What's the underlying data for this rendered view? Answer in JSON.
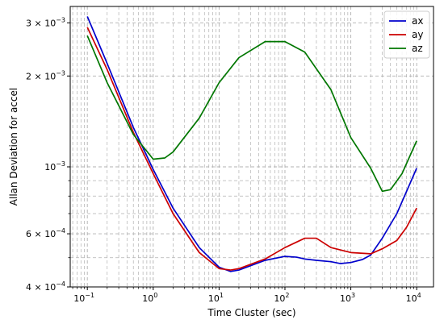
{
  "chart_data": {
    "type": "line",
    "title": "",
    "xlabel": "Time Cluster (sec)",
    "ylabel": "Allan Deviation for accel",
    "xscale": "log",
    "yscale": "log",
    "xlim": [
      0.055,
      18000
    ],
    "ylim": [
      0.0004,
      0.0034
    ],
    "grid": "both major and minor, dashed gray",
    "legend": "top-right",
    "x_ticks": [
      {
        "value": 0.1,
        "base": "10",
        "exp": "−1"
      },
      {
        "value": 1,
        "base": "10",
        "exp": "0"
      },
      {
        "value": 10,
        "base": "10",
        "exp": "1"
      },
      {
        "value": 100,
        "base": "10",
        "exp": "2"
      },
      {
        "value": 1000,
        "base": "10",
        "exp": "3"
      },
      {
        "value": 10000,
        "base": "10",
        "exp": "4"
      }
    ],
    "y_ticks": [
      {
        "value": 0.003,
        "mant": "3 × 10",
        "exp": "−3"
      },
      {
        "value": 0.002,
        "mant": "2 × 10",
        "exp": "−3"
      },
      {
        "value": 0.001,
        "mant": "10",
        "exp": "−3"
      },
      {
        "value": 0.0006,
        "mant": "6 × 10",
        "exp": "−4"
      },
      {
        "value": 0.0004,
        "mant": "4 × 10",
        "exp": "−4"
      }
    ],
    "series": [
      {
        "name": "ax",
        "color": "#0000cc",
        "points": [
          [
            0.1,
            0.00315
          ],
          [
            0.2,
            0.0022
          ],
          [
            0.5,
            0.00135
          ],
          [
            1,
            0.00098
          ],
          [
            2,
            0.00073
          ],
          [
            5,
            0.00054
          ],
          [
            10,
            0.000465
          ],
          [
            15,
            0.00045
          ],
          [
            20,
            0.000455
          ],
          [
            50,
            0.00049
          ],
          [
            100,
            0.000505
          ],
          [
            150,
            0.000502
          ],
          [
            200,
            0.000495
          ],
          [
            300,
            0.00049
          ],
          [
            500,
            0.000485
          ],
          [
            700,
            0.000478
          ],
          [
            1000,
            0.000482
          ],
          [
            1500,
            0.000493
          ],
          [
            2000,
            0.00051
          ],
          [
            3000,
            0.00058
          ],
          [
            5000,
            0.0007
          ],
          [
            10000,
            0.00099
          ]
        ]
      },
      {
        "name": "ay",
        "color": "#cc0000",
        "points": [
          [
            0.1,
            0.0029
          ],
          [
            0.2,
            0.0021
          ],
          [
            0.5,
            0.0013
          ],
          [
            1,
            0.00095
          ],
          [
            2,
            0.0007
          ],
          [
            5,
            0.00052
          ],
          [
            10,
            0.00046
          ],
          [
            15,
            0.000455
          ],
          [
            20,
            0.00046
          ],
          [
            50,
            0.000495
          ],
          [
            100,
            0.00054
          ],
          [
            200,
            0.00058
          ],
          [
            300,
            0.00058
          ],
          [
            500,
            0.00054
          ],
          [
            1000,
            0.00052
          ],
          [
            2000,
            0.000515
          ],
          [
            3000,
            0.000535
          ],
          [
            5000,
            0.00057
          ],
          [
            7000,
            0.00063
          ],
          [
            10000,
            0.00073
          ]
        ]
      },
      {
        "name": "az",
        "color": "#007700",
        "points": [
          [
            0.1,
            0.00272
          ],
          [
            0.2,
            0.0019
          ],
          [
            0.5,
            0.00128
          ],
          [
            1,
            0.00106
          ],
          [
            1.5,
            0.00107
          ],
          [
            2,
            0.00112
          ],
          [
            5,
            0.00145
          ],
          [
            10,
            0.0019
          ],
          [
            20,
            0.0023
          ],
          [
            50,
            0.0026
          ],
          [
            100,
            0.0026
          ],
          [
            200,
            0.0024
          ],
          [
            500,
            0.0018
          ],
          [
            1000,
            0.00125
          ],
          [
            2000,
            0.00099
          ],
          [
            3000,
            0.00083
          ],
          [
            4000,
            0.00084
          ],
          [
            6000,
            0.00095
          ],
          [
            10000,
            0.00122
          ]
        ]
      }
    ]
  }
}
